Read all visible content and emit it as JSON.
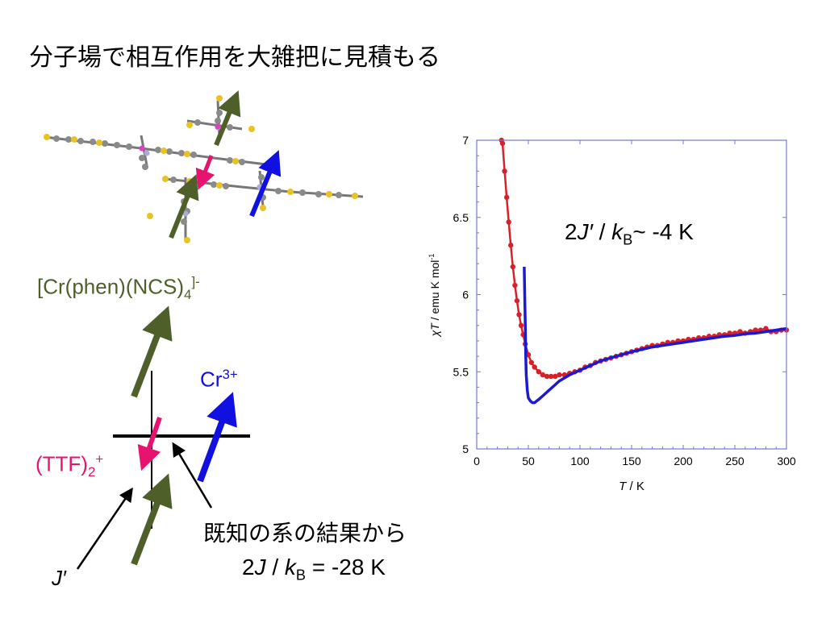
{
  "slide": {
    "title": "分子場で相互作用を大雑把に見積もる"
  },
  "labels": {
    "complex": "[Cr(phen)(NCS)",
    "complex_sub": "4",
    "complex_sup": "]-",
    "cr_main": "Cr",
    "cr_sup": "3+",
    "ttf_main": "(TTF)",
    "ttf_sub": "2",
    "ttf_sup": "+",
    "j_prime": "J′",
    "known_text": "既知の系の結果から",
    "known_value_prefix": "2",
    "known_value_J": "J",
    "known_value_sep": " / ",
    "known_value_k": "k",
    "known_value_ksub": "B",
    "known_value_rest": " = -28 K",
    "fit_prefix": "2",
    "fit_J": "J′",
    "fit_sep": "  / ",
    "fit_k": "k",
    "fit_ksub": "B",
    "fit_rest": "~ -4 K"
  },
  "colors": {
    "anion": "#4f5f2a",
    "cation": "#e8136f",
    "cr": "#1010e0",
    "data": "#d8202a",
    "fit": "#1a1ad0"
  },
  "chart_data": {
    "type": "line",
    "xlabel_italic": "T",
    "xlabel_rest": " / K",
    "ylabel_italic": "χT",
    "ylabel_rest": " / emu K mol",
    "ylabel_sup": "-1",
    "xlim": [
      0,
      300
    ],
    "ylim": [
      5,
      7
    ],
    "xticks": [
      "0",
      "50",
      "100",
      "150",
      "200",
      "250",
      "300"
    ],
    "yticks": [
      "5",
      "5.5",
      "6",
      "6.5",
      "7"
    ],
    "series": [
      {
        "style": "markers+line",
        "color": "#d8202a",
        "x": [
          24,
          25,
          27,
          29,
          31,
          33,
          35,
          37,
          39,
          41,
          43,
          45,
          47,
          50,
          53,
          56,
          60,
          64,
          68,
          72,
          76,
          80,
          85,
          90,
          95,
          100,
          105,
          110,
          115,
          120,
          125,
          130,
          135,
          140,
          145,
          150,
          155,
          160,
          165,
          170,
          175,
          180,
          185,
          190,
          195,
          200,
          205,
          210,
          215,
          220,
          225,
          230,
          235,
          240,
          245,
          250,
          255,
          260,
          265,
          270,
          275,
          280,
          285,
          290,
          295,
          300
        ],
        "y": [
          7.0,
          6.98,
          6.8,
          6.63,
          6.47,
          6.32,
          6.18,
          6.06,
          5.96,
          5.87,
          5.8,
          5.74,
          5.68,
          5.61,
          5.56,
          5.53,
          5.5,
          5.48,
          5.47,
          5.47,
          5.47,
          5.48,
          5.48,
          5.49,
          5.5,
          5.51,
          5.53,
          5.54,
          5.56,
          5.57,
          5.58,
          5.59,
          5.6,
          5.61,
          5.62,
          5.63,
          5.64,
          5.65,
          5.66,
          5.67,
          5.67,
          5.68,
          5.69,
          5.69,
          5.7,
          5.7,
          5.71,
          5.71,
          5.72,
          5.72,
          5.73,
          5.73,
          5.74,
          5.74,
          5.75,
          5.75,
          5.76,
          5.75,
          5.76,
          5.77,
          5.77,
          5.78,
          5.76,
          5.76,
          5.77,
          5.77
        ]
      },
      {
        "style": "line",
        "color": "#1a1ad0",
        "x": [
          46,
          46.5,
          47,
          47.5,
          48,
          49,
          50,
          52,
          54,
          56,
          58,
          60,
          65,
          70,
          75,
          80,
          90,
          100,
          110,
          120,
          130,
          140,
          150,
          160,
          170,
          180,
          190,
          200,
          210,
          220,
          230,
          240,
          250,
          260,
          270,
          280,
          290,
          300
        ],
        "y": [
          6.18,
          6.0,
          5.8,
          5.6,
          5.48,
          5.38,
          5.33,
          5.31,
          5.3,
          5.3,
          5.31,
          5.32,
          5.35,
          5.38,
          5.41,
          5.44,
          5.48,
          5.51,
          5.54,
          5.57,
          5.59,
          5.61,
          5.63,
          5.645,
          5.66,
          5.67,
          5.68,
          5.69,
          5.7,
          5.71,
          5.72,
          5.73,
          5.735,
          5.745,
          5.75,
          5.76,
          5.77,
          5.78
        ]
      }
    ]
  }
}
